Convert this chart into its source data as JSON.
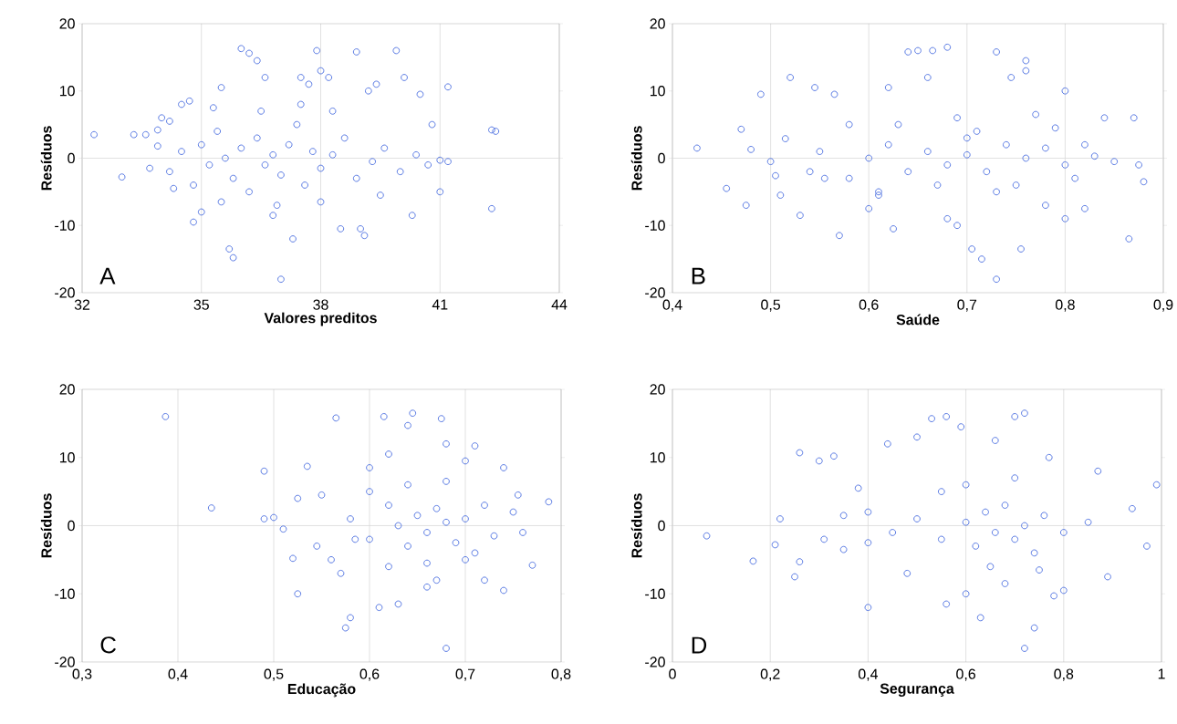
{
  "chart_data": [
    {
      "type": "scatter",
      "xlabel": "Valores preditos",
      "ylabel": "Resíduos",
      "annotations": [
        "A"
      ],
      "ref_lines": [
        {
          "axis": "y",
          "value": 0,
          "color": "#d9d9d9"
        }
      ],
      "color": "#4a6ee0",
      "marker": "circle",
      "grid": "x",
      "xlim": [
        32,
        44
      ],
      "xticks": [
        32,
        35,
        38,
        41,
        44
      ],
      "ylim": [
        -20,
        20
      ],
      "yticks": [
        -20,
        -10,
        0,
        10,
        20
      ],
      "x": [
        32.3,
        33.0,
        33.3,
        33.6,
        33.9,
        33.9,
        34.2,
        34.5,
        34.7,
        34.8,
        35.0,
        35.5,
        35.7,
        35.8,
        36.0,
        36.2,
        36.4,
        36.6,
        36.8,
        37.0,
        37.3,
        37.5,
        37.7,
        37.9,
        38.0,
        38.2,
        38.5,
        38.9,
        39.0,
        39.1,
        39.2,
        39.4,
        39.9,
        40.1,
        40.3,
        40.5,
        40.8,
        41.0,
        41.2,
        41.2,
        42.3,
        42.4,
        42.3,
        34.2,
        34.5,
        34.8,
        35.0,
        35.2,
        35.4,
        35.6,
        35.8,
        36.0,
        36.2,
        36.4,
        36.6,
        36.8,
        37.0,
        37.2,
        37.4,
        37.6,
        37.8,
        38.0,
        38.3,
        38.6,
        38.9,
        39.3,
        39.6,
        40.0,
        40.4,
        40.7,
        41.0,
        34.0,
        35.3,
        36.5,
        37.5,
        38.3,
        35.5,
        36.9,
        38.0,
        39.5,
        34.3,
        33.7
      ],
      "values": [
        3.5,
        -2.8,
        3.5,
        3.5,
        4.2,
        1.8,
        5.5,
        8.0,
        8.5,
        -9.5,
        -8.0,
        10.5,
        -13.5,
        -14.8,
        16.3,
        15.6,
        14.5,
        12.0,
        -8.5,
        -18,
        -12,
        12,
        11,
        16,
        13,
        12,
        -10.5,
        15.8,
        -10.5,
        -11.5,
        10,
        11,
        16,
        12,
        -8.5,
        9.5,
        5,
        -5,
        10.6,
        -0.5,
        4.2,
        4,
        -7.5,
        -2,
        1,
        -4,
        2,
        -1,
        4,
        0,
        -3,
        1.5,
        -5,
        3,
        -1,
        0.5,
        -2.5,
        2,
        5,
        -4,
        1,
        -1.5,
        0.5,
        3,
        -3,
        -0.5,
        1.5,
        -2,
        0.5,
        -1,
        -0.3,
        6,
        7.5,
        7,
        8,
        7,
        -6.5,
        -7,
        -6.5,
        -5.5,
        -4.5,
        -1.5
      ]
    },
    {
      "type": "scatter",
      "xlabel": "Saúde",
      "ylabel": "Resíduos",
      "annotations": [
        "B"
      ],
      "ref_lines": [
        {
          "axis": "y",
          "value": 0,
          "color": "#d9d9d9"
        }
      ],
      "color": "#4a6ee0",
      "marker": "circle",
      "grid": "x",
      "xlim": [
        0.4,
        0.9
      ],
      "xticks": [
        {
          "value": 0.4,
          "label": "0,4"
        },
        {
          "value": 0.5,
          "label": "0,5"
        },
        {
          "value": 0.6,
          "label": "0,6"
        },
        {
          "value": 0.7,
          "label": "0,7"
        },
        {
          "value": 0.8,
          "label": "0,8"
        },
        {
          "value": 0.9,
          "label": "0,9"
        }
      ],
      "ylim": [
        -20,
        20
      ],
      "yticks": [
        -20,
        -10,
        0,
        10,
        20
      ],
      "x": [
        0.425,
        0.455,
        0.47,
        0.475,
        0.48,
        0.49,
        0.5,
        0.505,
        0.51,
        0.515,
        0.52,
        0.53,
        0.54,
        0.545,
        0.555,
        0.565,
        0.57,
        0.58,
        0.6,
        0.61,
        0.62,
        0.625,
        0.64,
        0.65,
        0.665,
        0.68,
        0.66,
        0.68,
        0.69,
        0.7,
        0.705,
        0.715,
        0.73,
        0.73,
        0.76,
        0.76,
        0.745,
        0.755,
        0.78,
        0.8,
        0.84,
        0.87,
        0.875,
        0.88,
        0.865,
        0.8,
        0.82,
        0.83,
        0.85,
        0.6,
        0.62,
        0.64,
        0.66,
        0.68,
        0.7,
        0.72,
        0.74,
        0.76,
        0.78,
        0.8,
        0.82,
        0.63,
        0.67,
        0.71,
        0.75,
        0.79,
        0.58,
        0.55,
        0.61,
        0.69,
        0.73,
        0.77,
        0.81
      ],
      "values": [
        1.5,
        -4.5,
        4.3,
        -7,
        1.3,
        9.5,
        -0.5,
        -2.6,
        -5.5,
        2.9,
        12,
        -8.5,
        -2,
        10.5,
        -3,
        9.5,
        -11.5,
        5,
        -7.5,
        -5,
        10.5,
        -10.5,
        15.8,
        16,
        16,
        16.5,
        12,
        -9,
        -10,
        3,
        -13.5,
        -15,
        15.8,
        -18,
        14.5,
        13,
        12,
        -13.5,
        -7,
        10,
        6,
        6,
        -1,
        -3.5,
        -12,
        -9,
        -7.5,
        0.3,
        -0.5,
        0,
        2,
        -2,
        1,
        -1,
        0.5,
        -2,
        2,
        0,
        1.5,
        -1,
        2,
        5,
        -4,
        4,
        -4,
        4.5,
        -3,
        1,
        -5.5,
        6,
        -5,
        6.5,
        -3
      ]
    },
    {
      "type": "scatter",
      "xlabel": "Educação",
      "ylabel": "Resíduos",
      "annotations": [
        "C"
      ],
      "ref_lines": [
        {
          "axis": "y",
          "value": 0,
          "color": "#d9d9d9"
        }
      ],
      "color": "#4a6ee0",
      "marker": "circle",
      "grid": "x",
      "xlim": [
        0.3,
        0.8
      ],
      "xticks": [
        {
          "value": 0.3,
          "label": "0,3"
        },
        {
          "value": 0.4,
          "label": "0,4"
        },
        {
          "value": 0.5,
          "label": "0,5"
        },
        {
          "value": 0.6,
          "label": "0,6"
        },
        {
          "value": 0.7,
          "label": "0,7"
        },
        {
          "value": 0.8,
          "label": "0,8"
        }
      ],
      "ylim": [
        -20,
        20
      ],
      "yticks": [
        -20,
        -10,
        0,
        10,
        20
      ],
      "x": [
        0.387,
        0.435,
        0.49,
        0.49,
        0.5,
        0.51,
        0.52,
        0.525,
        0.525,
        0.535,
        0.545,
        0.565,
        0.57,
        0.575,
        0.58,
        0.585,
        0.6,
        0.61,
        0.615,
        0.62,
        0.63,
        0.64,
        0.645,
        0.66,
        0.67,
        0.675,
        0.68,
        0.68,
        0.7,
        0.71,
        0.72,
        0.74,
        0.74,
        0.755,
        0.77,
        0.787,
        0.76,
        0.75,
        0.58,
        0.6,
        0.62,
        0.63,
        0.64,
        0.65,
        0.66,
        0.67,
        0.68,
        0.69,
        0.7,
        0.71,
        0.72,
        0.73,
        0.6,
        0.64,
        0.68,
        0.62,
        0.66,
        0.7,
        0.56,
        0.55
      ],
      "values": [
        16,
        2.6,
        8,
        1,
        1.2,
        -0.5,
        -4.8,
        4,
        -10,
        8.7,
        -3,
        15.8,
        -7,
        -15,
        -13.5,
        -2,
        8.5,
        -12,
        16,
        10.5,
        -11.5,
        14.7,
        16.5,
        -9,
        -8,
        15.7,
        12,
        -18,
        9.5,
        11.7,
        -8,
        -9.5,
        8.5,
        4.5,
        -5.8,
        3.5,
        -1,
        2,
        1,
        -2,
        3,
        0,
        -3,
        1.5,
        -1,
        2.5,
        0.5,
        -2.5,
        1,
        -4,
        3,
        -1.5,
        5,
        6,
        6.5,
        -6,
        -5.5,
        -5,
        -5,
        4.5
      ]
    },
    {
      "type": "scatter",
      "xlabel": "Segurança",
      "ylabel": "Resíduos",
      "annotations": [
        "D"
      ],
      "ref_lines": [
        {
          "axis": "y",
          "value": 0,
          "color": "#d9d9d9"
        }
      ],
      "color": "#4a6ee0",
      "marker": "circle",
      "grid": "x",
      "xlim": [
        0,
        1
      ],
      "xticks": [
        0,
        {
          "value": 0.2,
          "label": "0,2"
        },
        {
          "value": 0.4,
          "label": "0,4"
        },
        {
          "value": 0.6,
          "label": "0,6"
        },
        {
          "value": 0.8,
          "label": "0,8"
        },
        1
      ],
      "ylim": [
        -20,
        20
      ],
      "yticks": [
        -20,
        -10,
        0,
        10,
        20
      ],
      "x": [
        0.07,
        0.165,
        0.21,
        0.22,
        0.25,
        0.26,
        0.26,
        0.3,
        0.31,
        0.33,
        0.35,
        0.38,
        0.4,
        0.4,
        0.44,
        0.48,
        0.5,
        0.53,
        0.56,
        0.56,
        0.59,
        0.63,
        0.6,
        0.66,
        0.7,
        0.72,
        0.72,
        0.74,
        0.77,
        0.78,
        0.8,
        0.87,
        0.89,
        0.94,
        0.99,
        0.97,
        0.45,
        0.5,
        0.55,
        0.6,
        0.62,
        0.64,
        0.66,
        0.68,
        0.7,
        0.72,
        0.74,
        0.76,
        0.8,
        0.85,
        0.6,
        0.65,
        0.7,
        0.75,
        0.4,
        0.35,
        0.55,
        0.68
      ],
      "values": [
        -1.5,
        -5.2,
        -2.8,
        1,
        -7.5,
        10.7,
        -5.3,
        9.5,
        -2,
        10.2,
        -3.5,
        5.5,
        -12,
        2,
        12,
        -7,
        13,
        15.7,
        16,
        -11.5,
        14.5,
        -13.5,
        -10,
        12.5,
        16,
        16.5,
        -18,
        -15,
        10,
        -10.3,
        -9.5,
        8,
        -7.5,
        2.5,
        6,
        -3,
        -1,
        1,
        -2,
        0.5,
        -3,
        2,
        -1,
        3,
        -2,
        0,
        -4,
        1.5,
        -1,
        0.5,
        6,
        -6,
        7,
        -6.5,
        -2.5,
        1.5,
        5,
        -8.5
      ]
    }
  ]
}
